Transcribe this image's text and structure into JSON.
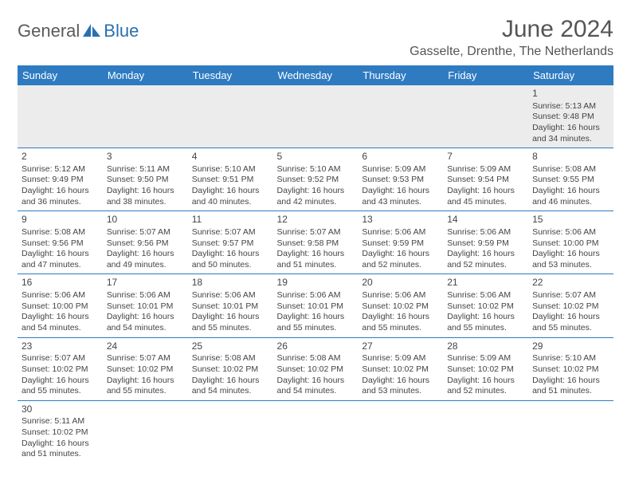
{
  "brand": {
    "part1": "General",
    "part2": "Blue"
  },
  "title": "June 2024",
  "location": "Gasselte, Drenthe, The Netherlands",
  "colors": {
    "header_bg": "#2f7bc1",
    "header_text": "#ffffff",
    "row_border": "#2f7bc1",
    "shaded_row": "#ececec",
    "brand_gray": "#5a5a5a",
    "brand_blue": "#2a6fb0"
  },
  "weekdays": [
    "Sunday",
    "Monday",
    "Tuesday",
    "Wednesday",
    "Thursday",
    "Friday",
    "Saturday"
  ],
  "grid": [
    [
      null,
      null,
      null,
      null,
      null,
      null,
      {
        "n": "1",
        "sr": "5:13 AM",
        "ss": "9:48 PM",
        "dl": "16 hours and 34 minutes."
      }
    ],
    [
      {
        "n": "2",
        "sr": "5:12 AM",
        "ss": "9:49 PM",
        "dl": "16 hours and 36 minutes."
      },
      {
        "n": "3",
        "sr": "5:11 AM",
        "ss": "9:50 PM",
        "dl": "16 hours and 38 minutes."
      },
      {
        "n": "4",
        "sr": "5:10 AM",
        "ss": "9:51 PM",
        "dl": "16 hours and 40 minutes."
      },
      {
        "n": "5",
        "sr": "5:10 AM",
        "ss": "9:52 PM",
        "dl": "16 hours and 42 minutes."
      },
      {
        "n": "6",
        "sr": "5:09 AM",
        "ss": "9:53 PM",
        "dl": "16 hours and 43 minutes."
      },
      {
        "n": "7",
        "sr": "5:09 AM",
        "ss": "9:54 PM",
        "dl": "16 hours and 45 minutes."
      },
      {
        "n": "8",
        "sr": "5:08 AM",
        "ss": "9:55 PM",
        "dl": "16 hours and 46 minutes."
      }
    ],
    [
      {
        "n": "9",
        "sr": "5:08 AM",
        "ss": "9:56 PM",
        "dl": "16 hours and 47 minutes."
      },
      {
        "n": "10",
        "sr": "5:07 AM",
        "ss": "9:56 PM",
        "dl": "16 hours and 49 minutes."
      },
      {
        "n": "11",
        "sr": "5:07 AM",
        "ss": "9:57 PM",
        "dl": "16 hours and 50 minutes."
      },
      {
        "n": "12",
        "sr": "5:07 AM",
        "ss": "9:58 PM",
        "dl": "16 hours and 51 minutes."
      },
      {
        "n": "13",
        "sr": "5:06 AM",
        "ss": "9:59 PM",
        "dl": "16 hours and 52 minutes."
      },
      {
        "n": "14",
        "sr": "5:06 AM",
        "ss": "9:59 PM",
        "dl": "16 hours and 52 minutes."
      },
      {
        "n": "15",
        "sr": "5:06 AM",
        "ss": "10:00 PM",
        "dl": "16 hours and 53 minutes."
      }
    ],
    [
      {
        "n": "16",
        "sr": "5:06 AM",
        "ss": "10:00 PM",
        "dl": "16 hours and 54 minutes."
      },
      {
        "n": "17",
        "sr": "5:06 AM",
        "ss": "10:01 PM",
        "dl": "16 hours and 54 minutes."
      },
      {
        "n": "18",
        "sr": "5:06 AM",
        "ss": "10:01 PM",
        "dl": "16 hours and 55 minutes."
      },
      {
        "n": "19",
        "sr": "5:06 AM",
        "ss": "10:01 PM",
        "dl": "16 hours and 55 minutes."
      },
      {
        "n": "20",
        "sr": "5:06 AM",
        "ss": "10:02 PM",
        "dl": "16 hours and 55 minutes."
      },
      {
        "n": "21",
        "sr": "5:06 AM",
        "ss": "10:02 PM",
        "dl": "16 hours and 55 minutes."
      },
      {
        "n": "22",
        "sr": "5:07 AM",
        "ss": "10:02 PM",
        "dl": "16 hours and 55 minutes."
      }
    ],
    [
      {
        "n": "23",
        "sr": "5:07 AM",
        "ss": "10:02 PM",
        "dl": "16 hours and 55 minutes."
      },
      {
        "n": "24",
        "sr": "5:07 AM",
        "ss": "10:02 PM",
        "dl": "16 hours and 55 minutes."
      },
      {
        "n": "25",
        "sr": "5:08 AM",
        "ss": "10:02 PM",
        "dl": "16 hours and 54 minutes."
      },
      {
        "n": "26",
        "sr": "5:08 AM",
        "ss": "10:02 PM",
        "dl": "16 hours and 54 minutes."
      },
      {
        "n": "27",
        "sr": "5:09 AM",
        "ss": "10:02 PM",
        "dl": "16 hours and 53 minutes."
      },
      {
        "n": "28",
        "sr": "5:09 AM",
        "ss": "10:02 PM",
        "dl": "16 hours and 52 minutes."
      },
      {
        "n": "29",
        "sr": "5:10 AM",
        "ss": "10:02 PM",
        "dl": "16 hours and 51 minutes."
      }
    ],
    [
      {
        "n": "30",
        "sr": "5:11 AM",
        "ss": "10:02 PM",
        "dl": "16 hours and 51 minutes."
      },
      null,
      null,
      null,
      null,
      null,
      null
    ]
  ],
  "labels": {
    "sunrise": "Sunrise: ",
    "sunset": "Sunset: ",
    "daylight": "Daylight: "
  }
}
